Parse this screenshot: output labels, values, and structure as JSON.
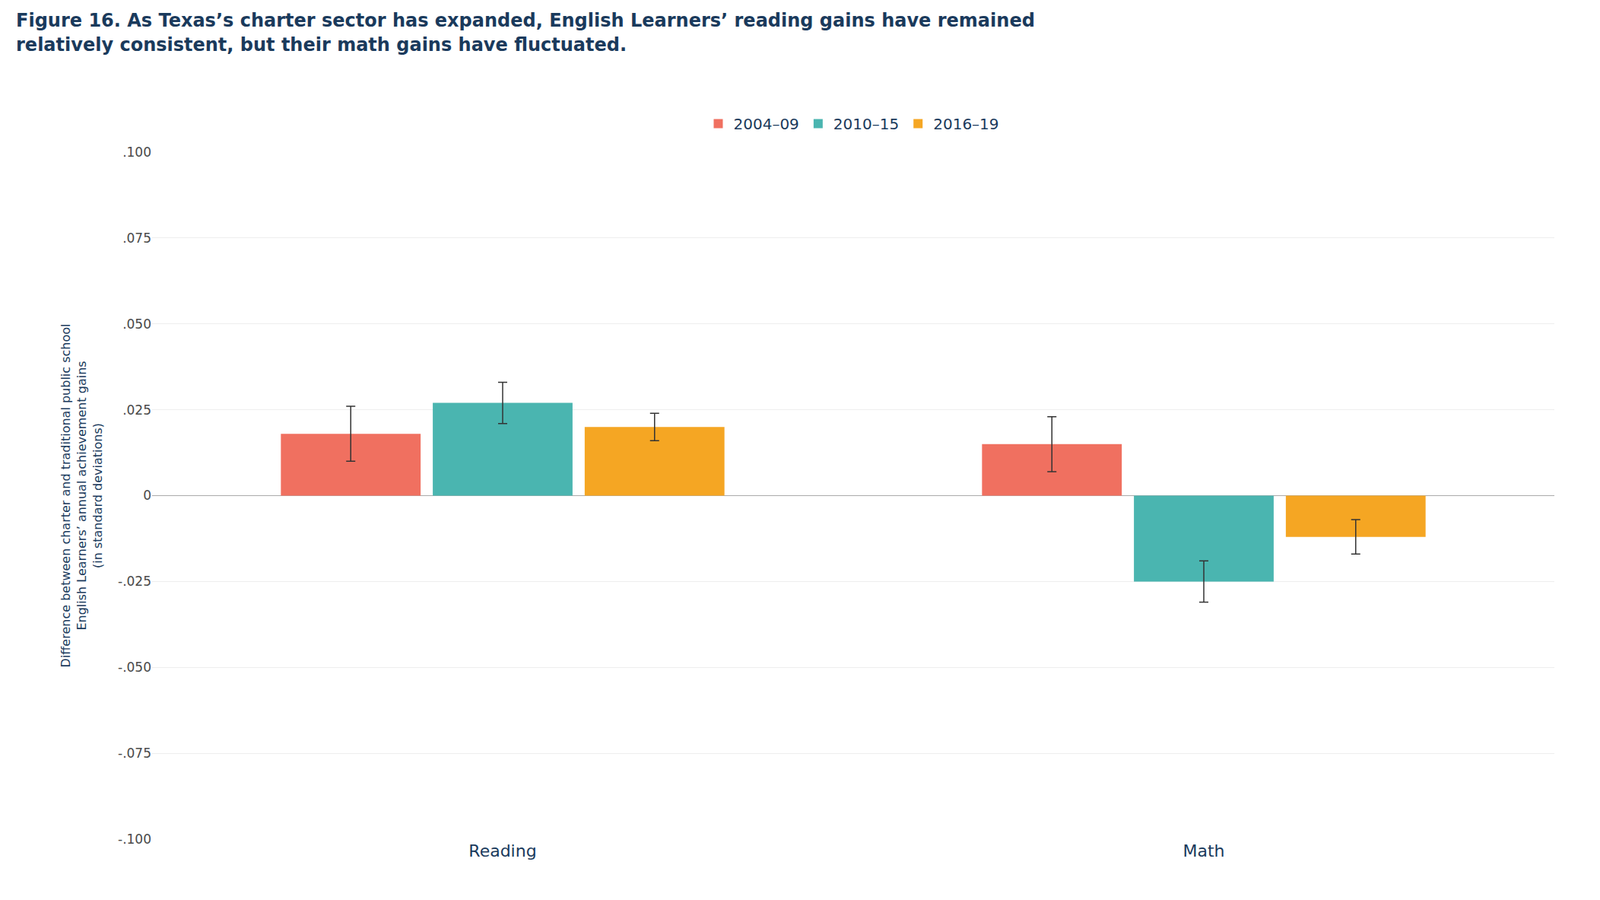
{
  "chart_data": {
    "type": "bar",
    "title": "Figure 16. As Texas’s charter sector has expanded, English Learners’ reading gains have remained\nrelatively consistent, but their math gains have fluctuated.",
    "ylabel": "Difference between charter and traditional public school\nEnglish Learners’ annual achievement gains\n(in standard deviations)",
    "categories": [
      "Reading",
      "Math"
    ],
    "series": [
      {
        "name": "2004–09",
        "color": "#f07060",
        "values": [
          0.018,
          0.015
        ],
        "errors": [
          0.008,
          0.008
        ]
      },
      {
        "name": "2010–15",
        "color": "#4ab5b0",
        "values": [
          0.027,
          -0.025
        ],
        "errors": [
          0.006,
          0.006
        ]
      },
      {
        "name": "2016–19",
        "color": "#f5a623",
        "values": [
          0.02,
          -0.012
        ],
        "errors": [
          0.004,
          0.005
        ]
      }
    ],
    "ylim": [
      -0.1,
      0.1
    ],
    "yticks": [
      {
        "value": -0.1,
        "label": "-.100"
      },
      {
        "value": -0.075,
        "label": "-.075"
      },
      {
        "value": -0.05,
        "label": "-.050"
      },
      {
        "value": -0.025,
        "label": "-.025"
      },
      0,
      {
        "value": 0.025,
        "label": ".025"
      },
      {
        "value": 0.05,
        "label": ".050"
      },
      {
        "value": 0.075,
        "label": ".075"
      },
      {
        "value": 0.1,
        "label": ".100"
      }
    ],
    "grid": true,
    "legend": "top"
  }
}
